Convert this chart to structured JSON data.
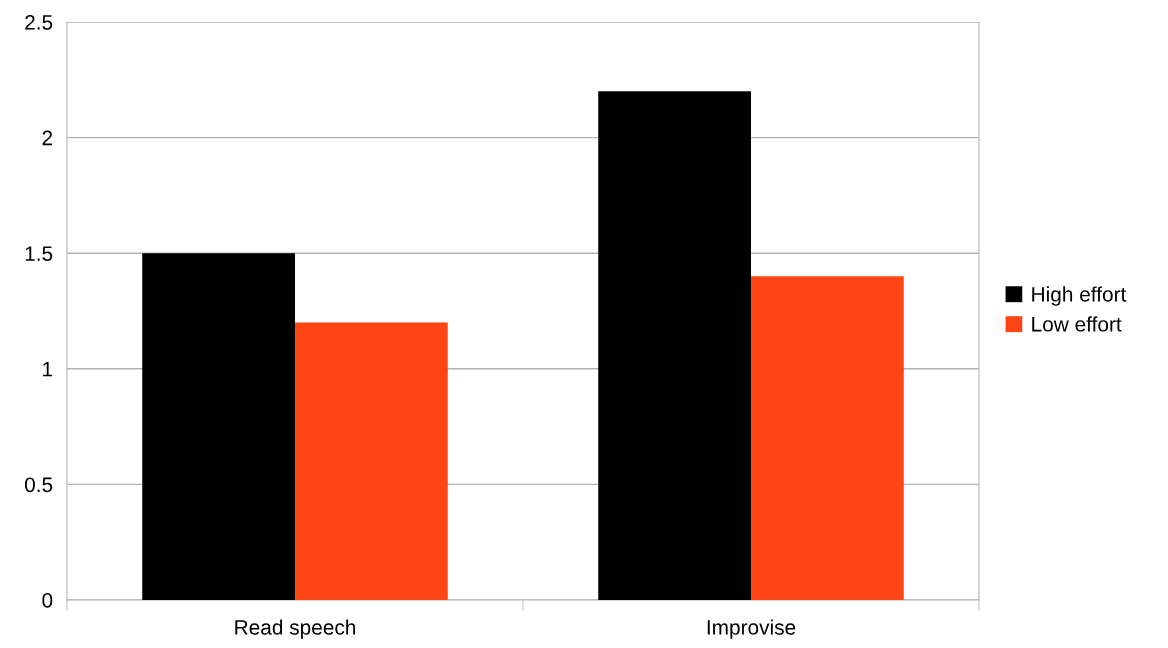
{
  "chart_data": {
    "type": "bar",
    "categories": [
      "Read speech",
      "Improvise"
    ],
    "series": [
      {
        "name": "High effort",
        "color": "#000000",
        "values": [
          1.5,
          2.2
        ]
      },
      {
        "name": "Low effort",
        "color": "#ff4514",
        "values": [
          1.2,
          1.4
        ]
      }
    ],
    "ylim": [
      0,
      2.5
    ],
    "yticks": [
      0,
      0.5,
      1,
      1.5,
      2,
      2.5
    ],
    "grid": "y",
    "legend": "right"
  }
}
